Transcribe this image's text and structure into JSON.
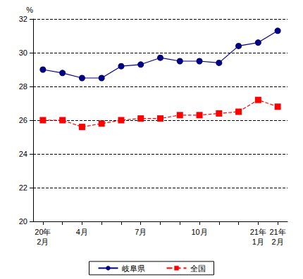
{
  "chart_data": {
    "type": "line",
    "y_label": "%",
    "categories": [
      "20年\n2月",
      null,
      "4月",
      null,
      null,
      "7月",
      null,
      null,
      "10月",
      null,
      null,
      "21年\n1月",
      "21年\n2月"
    ],
    "series": [
      {
        "name": "岐阜県",
        "color": "#000080",
        "marker": "circle",
        "line_style": "solid",
        "values": [
          29.0,
          28.8,
          28.5,
          28.5,
          29.2,
          29.3,
          29.7,
          29.5,
          29.5,
          29.4,
          30.4,
          30.6,
          31.3
        ]
      },
      {
        "name": "全国",
        "color": "#ff0000",
        "marker": "square",
        "line_style": "dashed",
        "values": [
          26.0,
          26.0,
          25.6,
          25.8,
          26.0,
          26.1,
          26.1,
          26.3,
          26.3,
          26.4,
          26.5,
          27.2,
          26.8
        ]
      }
    ],
    "ylim": [
      20,
      32
    ],
    "yticks": [
      20,
      22,
      24,
      26,
      28,
      30,
      32
    ],
    "grid": true,
    "legend": "bottom"
  }
}
